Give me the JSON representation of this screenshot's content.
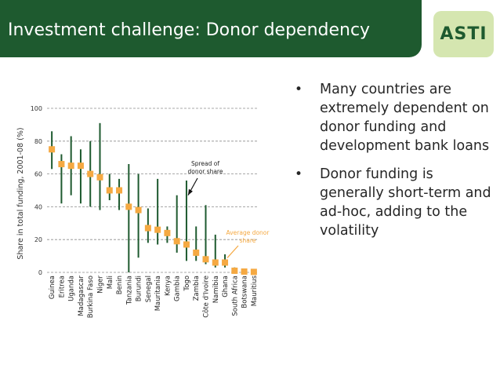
{
  "header": {
    "title": "Investment challenge: Donor dependency",
    "logo_text": "ASTI"
  },
  "bullets": [
    "Many countries are extremely dependent on donor funding and development bank loans",
    "Donor funding is generally short-term and ad-hoc, adding to the volatility"
  ],
  "colors": {
    "title_bar": "#1e5a2f",
    "logo_bg": "#d5e6b0",
    "range_line": "#1e5a2f",
    "average_marker": "#f5a942",
    "average_label": "#f5a942"
  },
  "chart_data": {
    "type": "range-with-marker",
    "title": "",
    "ylabel": "Share  in total funding, 2001-08 (%)",
    "xlabel": "",
    "ylim": [
      0,
      100
    ],
    "yticks": [
      0,
      20,
      40,
      60,
      80,
      100
    ],
    "grid": true,
    "categories": [
      "Guinea",
      "Eritrea",
      "Uganda",
      "Madagascar",
      "Burkina Faso",
      "Niger",
      "Mali",
      "Benin",
      "Tanzania",
      "Burundi",
      "Senegal",
      "Mauritania",
      "Kenya",
      "Gambia",
      "Togo",
      "Zambia",
      "Côte d'Ivoire",
      "Namibia",
      "Ghana",
      "South Africa",
      "Botswana",
      "Mauritius"
    ],
    "series": [
      {
        "name": "Spread of donor share (min)",
        "values": [
          63,
          42,
          47,
          42,
          40,
          38,
          44,
          38,
          0,
          9,
          18,
          17,
          18,
          12,
          7,
          7,
          5,
          3,
          3,
          1,
          0,
          0
        ]
      },
      {
        "name": "Spread of donor share (max)",
        "values": [
          86,
          72,
          83,
          75,
          80,
          91,
          60,
          57,
          66,
          60,
          39,
          57,
          28,
          47,
          56,
          28,
          41,
          23,
          11,
          3,
          2,
          1
        ]
      },
      {
        "name": "Average donor share",
        "values": [
          75,
          66,
          65,
          65,
          60,
          58,
          50,
          50,
          40,
          38,
          27,
          26,
          24,
          19,
          17,
          12,
          8,
          6,
          6,
          1,
          0.5,
          0.3
        ]
      }
    ],
    "annotations": [
      {
        "text_lines": [
          "Spread of",
          "donor share"
        ],
        "target": "Togo"
      },
      {
        "text_lines": [
          "Average donor",
          "share"
        ],
        "target": "Ghana"
      }
    ]
  }
}
